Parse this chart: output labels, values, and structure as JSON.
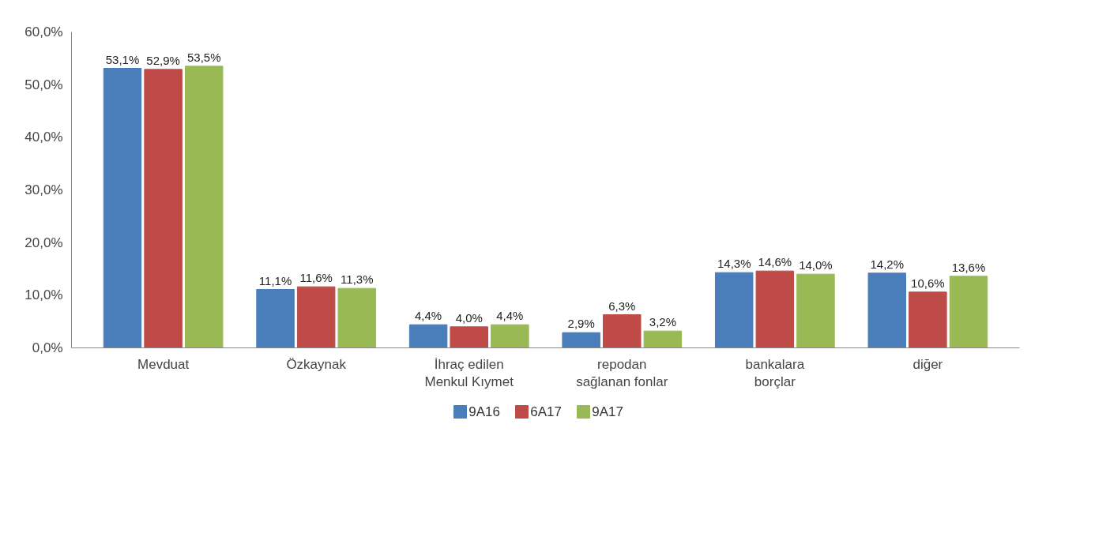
{
  "chart_data": {
    "type": "bar",
    "categories": [
      "Mevduat",
      "Özkaynak",
      "İhraç edilen\nMenkul Kıymet",
      "repodan\nsağlanan fonlar",
      "bankalara\nborçlar",
      "diğer"
    ],
    "series": [
      {
        "name": "9A16",
        "color": "#4a7ebb",
        "values": [
          53.1,
          11.1,
          4.4,
          2.9,
          14.3,
          14.2
        ],
        "value_labels": [
          "53,1%",
          "11,1%",
          "4,4%",
          "2,9%",
          "14,3%",
          "14,2%"
        ]
      },
      {
        "name": "6A17",
        "color": "#be4b48",
        "values": [
          52.9,
          11.6,
          4.0,
          6.3,
          14.6,
          10.6
        ],
        "value_labels": [
          "52,9%",
          "11,6%",
          "4,0%",
          "6,3%",
          "14,6%",
          "10,6%"
        ]
      },
      {
        "name": "9A17",
        "color": "#98b954",
        "values": [
          53.5,
          11.3,
          4.4,
          3.2,
          14.0,
          13.6
        ],
        "value_labels": [
          "53,5%",
          "11,3%",
          "4,4%",
          "3,2%",
          "14,0%",
          "13,6%"
        ]
      }
    ],
    "ylim": [
      0,
      60
    ],
    "yticks": [
      {
        "value": 0,
        "label": "0,0%"
      },
      {
        "value": 10,
        "label": "10,0%"
      },
      {
        "value": 20,
        "label": "20,0%"
      },
      {
        "value": 30,
        "label": "30,0%"
      },
      {
        "value": 40,
        "label": "40,0%"
      },
      {
        "value": 50,
        "label": "50,0%"
      },
      {
        "value": 60,
        "label": "60,0%"
      }
    ],
    "grid": false,
    "legend": "bottom"
  }
}
